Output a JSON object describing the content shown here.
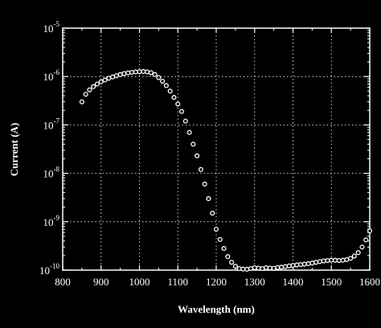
{
  "chart_data": {
    "type": "scatter",
    "title": "",
    "xlabel": "Wavelength (nm)",
    "ylabel": "Current (A)",
    "x_scale": "linear",
    "y_scale": "log",
    "xlim": [
      800,
      1600
    ],
    "ylim": [
      1e-10,
      1e-05
    ],
    "grid": true,
    "grid_style": "dotted",
    "x_ticks": [
      "800",
      "900",
      "1000",
      "1100",
      "1200",
      "1300",
      "1400",
      "1500",
      "1600"
    ],
    "y_ticks": [
      {
        "base": "10",
        "exp": "-10",
        "value": 1e-10
      },
      {
        "base": "10",
        "exp": "-9",
        "value": 1e-09
      },
      {
        "base": "10",
        "exp": "-8",
        "value": 1e-08
      },
      {
        "base": "10",
        "exp": "-7",
        "value": 1e-07
      },
      {
        "base": "10",
        "exp": "-6",
        "value": 1e-06
      },
      {
        "base": "10",
        "exp": "-5",
        "value": 1e-05
      }
    ],
    "series": [
      {
        "marker": "open-circle",
        "color": "#ffffff",
        "points": [
          [
            850,
            3e-07
          ],
          [
            860,
            4.3e-07
          ],
          [
            870,
            5.3e-07
          ],
          [
            880,
            6.2e-07
          ],
          [
            890,
            7e-07
          ],
          [
            900,
            7.8e-07
          ],
          [
            910,
            8.5e-07
          ],
          [
            920,
            9.2e-07
          ],
          [
            930,
            9.8e-07
          ],
          [
            940,
            1.04e-06
          ],
          [
            950,
            1.1e-06
          ],
          [
            960,
            1.15e-06
          ],
          [
            970,
            1.19e-06
          ],
          [
            980,
            1.22e-06
          ],
          [
            990,
            1.25e-06
          ],
          [
            1000,
            1.26e-06
          ],
          [
            1010,
            1.27e-06
          ],
          [
            1020,
            1.25e-06
          ],
          [
            1030,
            1.2e-06
          ],
          [
            1040,
            1.1e-06
          ],
          [
            1050,
            9.5e-07
          ],
          [
            1060,
            8e-07
          ],
          [
            1070,
            6.5e-07
          ],
          [
            1080,
            5e-07
          ],
          [
            1090,
            3.7e-07
          ],
          [
            1100,
            2.7e-07
          ],
          [
            1110,
            1.9e-07
          ],
          [
            1120,
            1.2e-07
          ],
          [
            1130,
            7e-08
          ],
          [
            1140,
            4e-08
          ],
          [
            1150,
            2.3e-08
          ],
          [
            1160,
            1.2e-08
          ],
          [
            1170,
            6e-09
          ],
          [
            1180,
            3e-09
          ],
          [
            1190,
            1.5e-09
          ],
          [
            1200,
            7e-10
          ],
          [
            1210,
            4.3e-10
          ],
          [
            1220,
            2.8e-10
          ],
          [
            1230,
            1.9e-10
          ],
          [
            1240,
            1.45e-10
          ],
          [
            1250,
            1.2e-10
          ],
          [
            1260,
            1.08e-10
          ],
          [
            1270,
            1.05e-10
          ],
          [
            1280,
            1.04e-10
          ],
          [
            1290,
            1.08e-10
          ],
          [
            1300,
            1.12e-10
          ],
          [
            1310,
            1.1e-10
          ],
          [
            1320,
            1.08e-10
          ],
          [
            1330,
            1.12e-10
          ],
          [
            1340,
            1.1e-10
          ],
          [
            1350,
            1.09e-10
          ],
          [
            1360,
            1.13e-10
          ],
          [
            1370,
            1.15e-10
          ],
          [
            1380,
            1.18e-10
          ],
          [
            1390,
            1.22e-10
          ],
          [
            1400,
            1.25e-10
          ],
          [
            1410,
            1.28e-10
          ],
          [
            1420,
            1.3e-10
          ],
          [
            1430,
            1.33e-10
          ],
          [
            1440,
            1.36e-10
          ],
          [
            1450,
            1.4e-10
          ],
          [
            1460,
            1.45e-10
          ],
          [
            1470,
            1.5e-10
          ],
          [
            1480,
            1.55e-10
          ],
          [
            1490,
            1.58e-10
          ],
          [
            1500,
            1.6e-10
          ],
          [
            1510,
            1.6e-10
          ],
          [
            1520,
            1.58e-10
          ],
          [
            1530,
            1.6e-10
          ],
          [
            1540,
            1.65e-10
          ],
          [
            1550,
            1.75e-10
          ],
          [
            1560,
            1.95e-10
          ],
          [
            1570,
            2.3e-10
          ],
          [
            1580,
            3e-10
          ],
          [
            1590,
            4.2e-10
          ],
          [
            1600,
            6.5e-10
          ]
        ]
      }
    ]
  }
}
